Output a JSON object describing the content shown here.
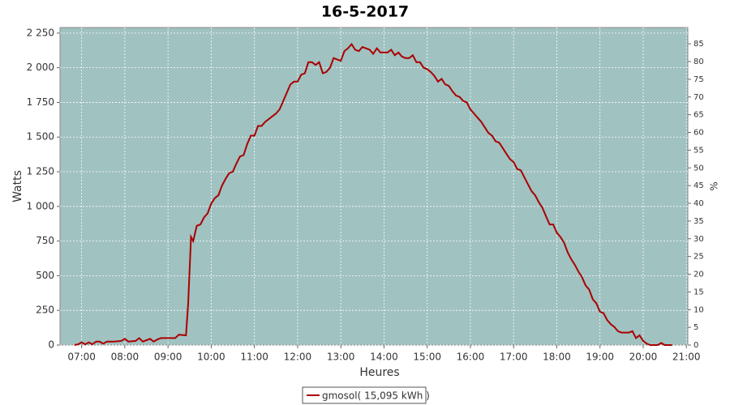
{
  "chart_data": {
    "type": "line",
    "title": "16-5-2017",
    "x_label": "Heures",
    "y_label": "Watts",
    "y2_label": "%",
    "x": [
      "06:50",
      "06:55",
      "07:00",
      "07:05",
      "07:10",
      "07:15",
      "07:20",
      "07:25",
      "07:30",
      "07:35",
      "07:45",
      "07:55",
      "08:00",
      "08:05",
      "08:15",
      "08:20",
      "08:25",
      "08:35",
      "08:40",
      "08:45",
      "08:50",
      "09:00",
      "09:10",
      "09:15",
      "09:25",
      "09:28",
      "09:32",
      "09:35",
      "09:40",
      "09:45",
      "09:50",
      "09:55",
      "10:00",
      "10:05",
      "10:10",
      "10:15",
      "10:20",
      "10:25",
      "10:30",
      "10:35",
      "10:40",
      "10:45",
      "10:50",
      "10:55",
      "11:00",
      "11:05",
      "11:10",
      "11:15",
      "11:20",
      "11:25",
      "11:30",
      "11:35",
      "11:40",
      "11:45",
      "11:50",
      "11:55",
      "12:00",
      "12:05",
      "12:10",
      "12:15",
      "12:20",
      "12:25",
      "12:30",
      "12:35",
      "12:40",
      "12:45",
      "12:50",
      "12:55",
      "13:00",
      "13:05",
      "13:10",
      "13:15",
      "13:20",
      "13:25",
      "13:30",
      "13:35",
      "13:40",
      "13:45",
      "13:50",
      "13:55",
      "14:00",
      "14:05",
      "14:10",
      "14:15",
      "14:20",
      "14:25",
      "14:30",
      "14:35",
      "14:40",
      "14:45",
      "14:50",
      "14:55",
      "15:00",
      "15:05",
      "15:10",
      "15:15",
      "15:20",
      "15:25",
      "15:30",
      "15:35",
      "15:40",
      "15:45",
      "15:50",
      "15:55",
      "16:00",
      "16:05",
      "16:10",
      "16:15",
      "16:20",
      "16:25",
      "16:30",
      "16:35",
      "16:40",
      "16:45",
      "16:50",
      "16:55",
      "17:00",
      "17:05",
      "17:10",
      "17:15",
      "17:20",
      "17:25",
      "17:30",
      "17:35",
      "17:40",
      "17:45",
      "17:50",
      "17:55",
      "18:00",
      "18:05",
      "18:10",
      "18:15",
      "18:20",
      "18:25",
      "18:30",
      "18:35",
      "18:40",
      "18:45",
      "18:50",
      "18:55",
      "19:00",
      "19:05",
      "19:10",
      "19:15",
      "19:20",
      "19:25",
      "19:30",
      "19:35",
      "19:40",
      "19:45",
      "19:50",
      "19:55",
      "20:00",
      "20:05",
      "20:10",
      "20:20",
      "20:25",
      "20:30",
      "20:40"
    ],
    "series": [
      {
        "name": "gmosol( 15,095 kWh )",
        "color": "#aa0000",
        "values": [
          0,
          5,
          20,
          5,
          20,
          5,
          25,
          25,
          10,
          25,
          25,
          30,
          45,
          25,
          30,
          50,
          25,
          45,
          25,
          40,
          50,
          50,
          50,
          75,
          70,
          300,
          780,
          750,
          860,
          870,
          920,
          950,
          1020,
          1060,
          1080,
          1150,
          1200,
          1240,
          1250,
          1310,
          1360,
          1370,
          1450,
          1510,
          1510,
          1580,
          1580,
          1610,
          1630,
          1650,
          1670,
          1700,
          1760,
          1820,
          1880,
          1900,
          1900,
          1950,
          1960,
          2040,
          2040,
          2020,
          2040,
          1960,
          1970,
          2000,
          2070,
          2060,
          2050,
          2120,
          2140,
          2170,
          2130,
          2120,
          2150,
          2140,
          2130,
          2100,
          2140,
          2110,
          2110,
          2110,
          2130,
          2090,
          2110,
          2080,
          2070,
          2070,
          2090,
          2040,
          2040,
          2000,
          1990,
          1970,
          1940,
          1900,
          1920,
          1880,
          1870,
          1830,
          1800,
          1790,
          1760,
          1750,
          1700,
          1670,
          1640,
          1610,
          1570,
          1530,
          1510,
          1470,
          1460,
          1420,
          1380,
          1340,
          1320,
          1270,
          1260,
          1210,
          1160,
          1110,
          1080,
          1030,
          990,
          930,
          870,
          870,
          810,
          780,
          740,
          670,
          620,
          580,
          530,
          490,
          430,
          400,
          330,
          300,
          240,
          230,
          180,
          150,
          130,
          100,
          90,
          90,
          90,
          100,
          50,
          70,
          30,
          10,
          0,
          0,
          15,
          0,
          0
        ]
      }
    ],
    "xlim": [
      "06:30",
      "21:02"
    ],
    "xticks": [
      "07:00",
      "08:00",
      "09:00",
      "10:00",
      "11:00",
      "12:00",
      "13:00",
      "14:00",
      "15:00",
      "16:00",
      "17:00",
      "18:00",
      "19:00",
      "20:00",
      "21:00"
    ],
    "ylim": [
      0,
      2290
    ],
    "yticks": [
      0,
      250,
      500,
      750,
      {
        "value": 1000,
        "label": "1 000"
      },
      {
        "value": 1250,
        "label": "1 250"
      },
      {
        "value": 1500,
        "label": "1 500"
      },
      {
        "value": 1750,
        "label": "1 750"
      },
      {
        "value": 2000,
        "label": "2 000"
      },
      {
        "value": 2250,
        "label": "2 250"
      }
    ],
    "y2lim": [
      0,
      89.6
    ],
    "y2ticks": [
      0,
      5,
      10,
      15,
      20,
      25,
      30,
      35,
      40,
      45,
      50,
      55,
      60,
      65,
      70,
      75,
      80,
      85
    ],
    "grid": true,
    "plot_background": "#a0c2c1",
    "legend": "bottom"
  }
}
